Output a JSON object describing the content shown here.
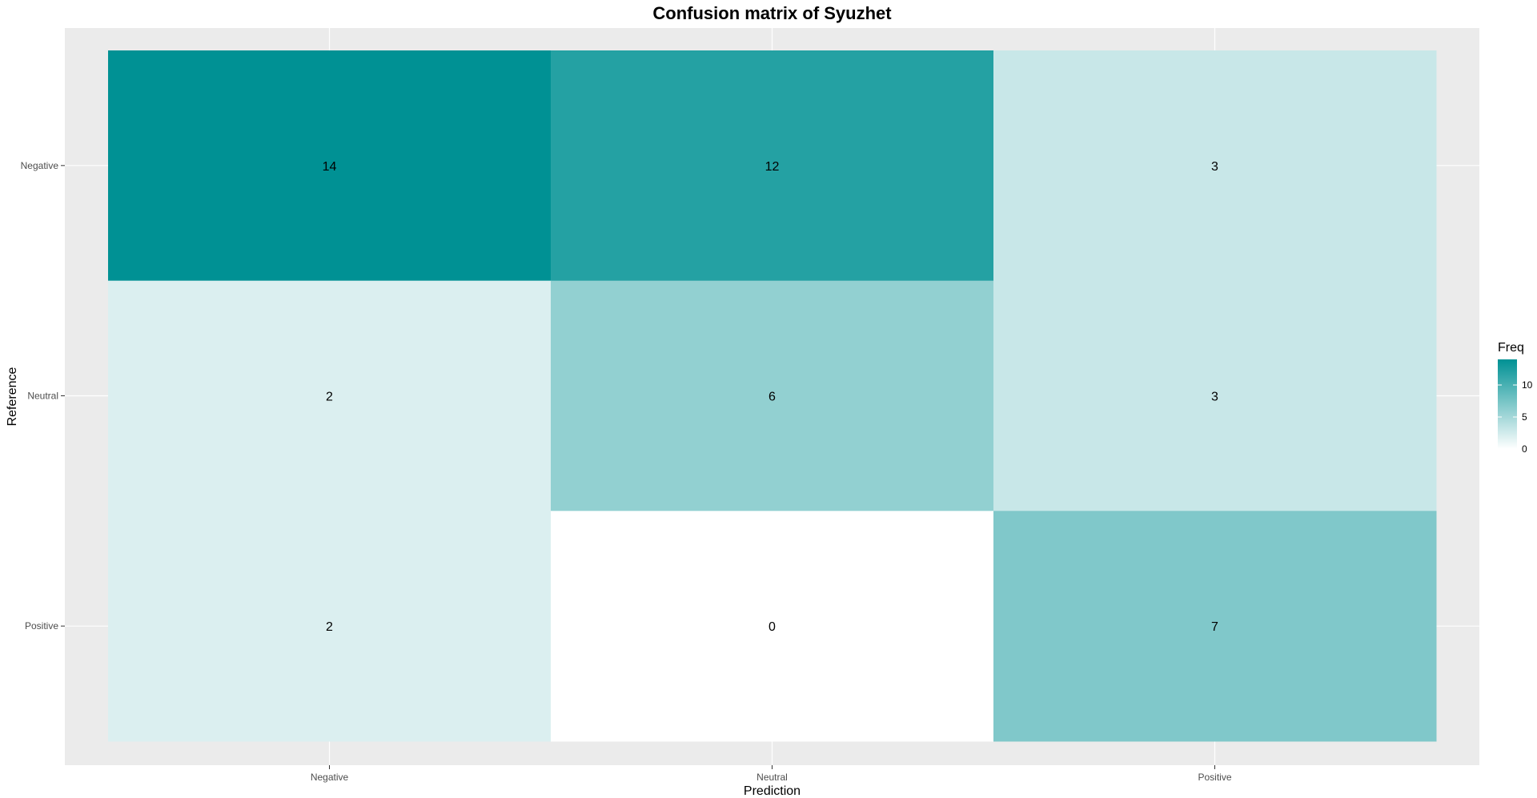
{
  "chart_data": {
    "type": "heatmap",
    "title": "Confusion matrix of Syuzhet",
    "xlabel": "Prediction",
    "ylabel": "Reference",
    "x_categories": [
      "Negative",
      "Neutral",
      "Positive"
    ],
    "y_categories": [
      "Negative",
      "Neutral",
      "Positive"
    ],
    "cells": [
      {
        "x": "Negative",
        "y": "Negative",
        "value": 14
      },
      {
        "x": "Neutral",
        "y": "Negative",
        "value": 12
      },
      {
        "x": "Positive",
        "y": "Negative",
        "value": 3
      },
      {
        "x": "Negative",
        "y": "Neutral",
        "value": 2
      },
      {
        "x": "Neutral",
        "y": "Neutral",
        "value": 6
      },
      {
        "x": "Positive",
        "y": "Neutral",
        "value": 3
      },
      {
        "x": "Negative",
        "y": "Positive",
        "value": 2
      },
      {
        "x": "Neutral",
        "y": "Positive",
        "value": 0
      },
      {
        "x": "Positive",
        "y": "Positive",
        "value": 7
      }
    ],
    "color_scale": {
      "low_color": "#ffffff",
      "high_color": "#009194",
      "min": 0,
      "max": 14
    },
    "legend": {
      "title": "Freq",
      "ticks": [
        0,
        5,
        10
      ],
      "tick_labels": [
        "0",
        "5",
        "10"
      ],
      "placement": "right"
    },
    "panel_background": "#ebebeb",
    "grid_color": "#ffffff",
    "grid": true
  }
}
